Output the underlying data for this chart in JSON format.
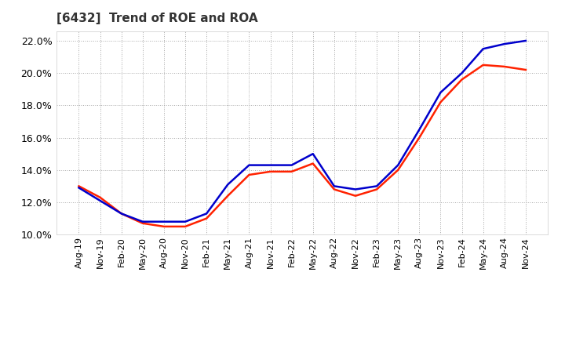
{
  "title": "[6432]  Trend of ROE and ROA",
  "background_color": "#ffffff",
  "plot_bg_color": "#ffffff",
  "grid_color": "#aaaaaa",
  "ylim": [
    0.1,
    0.226
  ],
  "yticks": [
    0.1,
    0.12,
    0.14,
    0.16,
    0.18,
    0.2,
    0.22
  ],
  "roe_color": "#ff2200",
  "roa_color": "#0000cc",
  "line_width": 1.8,
  "xtick_labels": [
    "Aug-19",
    "Nov-19",
    "Feb-20",
    "May-20",
    "Aug-20",
    "Nov-20",
    "Feb-21",
    "May-21",
    "Aug-21",
    "Nov-21",
    "Feb-22",
    "May-22",
    "Aug-22",
    "Nov-22",
    "Feb-23",
    "May-23",
    "Aug-23",
    "Nov-23",
    "Feb-24",
    "May-24",
    "Aug-24",
    "Nov-24"
  ],
  "roe_values": [
    0.13,
    0.123,
    0.113,
    0.107,
    0.105,
    0.105,
    0.11,
    0.124,
    0.137,
    0.139,
    0.139,
    0.144,
    0.128,
    0.124,
    0.128,
    0.14,
    0.16,
    0.182,
    0.196,
    0.205,
    0.204,
    0.202
  ],
  "roa_values": [
    0.129,
    0.121,
    0.113,
    0.108,
    0.108,
    0.108,
    0.113,
    0.131,
    0.143,
    0.143,
    0.143,
    0.15,
    0.13,
    0.128,
    0.13,
    0.143,
    0.165,
    0.188,
    0.2,
    0.215,
    0.218,
    0.22
  ],
  "title_fontsize": 11,
  "tick_fontsize": 8,
  "ytick_fontsize": 9
}
